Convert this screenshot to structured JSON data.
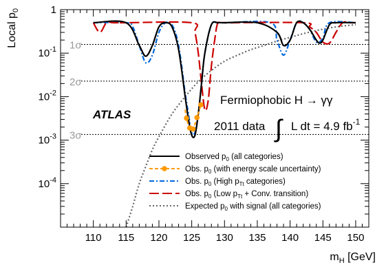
{
  "chart_data": {
    "type": "line",
    "xlabel_main": "m",
    "xlabel_sub": "H",
    "xlabel_unit": " [GeV]",
    "ylabel_main": "Local p",
    "ylabel_sub": "0",
    "xlim": [
      105,
      152
    ],
    "ylim": [
      1e-05,
      1
    ],
    "y_scale": "log",
    "x_ticks": [
      "110",
      "115",
      "120",
      "125",
      "130",
      "135",
      "140",
      "145",
      "150"
    ],
    "x_tick_values": [
      110,
      115,
      120,
      125,
      130,
      135,
      140,
      145,
      150
    ],
    "y_ticks": [
      {
        "base": "1",
        "exp": "",
        "value": 1
      },
      {
        "base": "10",
        "exp": "-1",
        "value": 0.1
      },
      {
        "base": "10",
        "exp": "-2",
        "value": 0.01
      },
      {
        "base": "10",
        "exp": "-3",
        "value": 0.001
      },
      {
        "base": "10",
        "exp": "-4",
        "value": 0.0001
      }
    ],
    "sigma_lines": [
      {
        "label": "1σ",
        "value": 0.1587
      },
      {
        "label": "2σ",
        "value": 0.02275
      },
      {
        "label": "3σ",
        "value": 0.00135
      }
    ],
    "experiment_label": "ATLAS",
    "annotation_title": "Fermiophobic H → γγ",
    "annotation_data": "2011 data",
    "annotation_lumi": "L dt = 4.9 fb",
    "annotation_lumi_exp": "-1",
    "series": [
      {
        "name": "Observed p0 (all categories)",
        "color": "#000000",
        "style": "solid",
        "x": [
          110,
          115,
          117,
          118,
          119,
          120,
          121,
          122,
          123,
          124,
          124.5,
          125,
          125.5,
          126,
          126.5,
          127,
          128,
          129,
          130,
          135,
          138,
          139,
          140,
          141,
          142,
          143,
          144,
          144.5,
          145,
          146,
          147,
          150
        ],
        "y": [
          0.5,
          0.5,
          0.15,
          0.085,
          0.15,
          0.4,
          0.5,
          0.4,
          0.12,
          0.01,
          0.003,
          0.0013,
          0.0013,
          0.004,
          0.02,
          0.1,
          0.45,
          0.5,
          0.5,
          0.5,
          0.3,
          0.15,
          0.2,
          0.5,
          0.5,
          0.35,
          0.2,
          0.17,
          0.2,
          0.45,
          0.5,
          0.5
        ]
      },
      {
        "name": "Obs. p0 (with energy scale uncertainty)",
        "color": "#ff9900",
        "style": "dashed-markers",
        "marker_x": [
          124.2,
          124.7,
          125.2,
          125.8,
          126.4
        ],
        "marker_y": [
          0.0032,
          0.0019,
          0.0018,
          0.0033,
          0.0065
        ],
        "x": [
          124,
          124.2,
          124.7,
          125.2,
          125.8,
          126.4
        ],
        "y": [
          0.005,
          0.0032,
          0.0019,
          0.0018,
          0.0033,
          0.0065
        ]
      },
      {
        "name": "Obs. p0 (High pTt categories)",
        "color": "#0066dd",
        "style": "dashdot",
        "x": [
          110,
          115,
          116,
          117,
          118,
          119,
          120,
          121,
          122,
          123,
          124,
          124.5,
          125,
          125.5,
          126,
          126.5,
          127,
          128,
          129,
          130,
          137,
          138,
          139,
          140,
          141,
          142,
          143,
          144,
          145,
          146,
          150
        ],
        "y": [
          0.5,
          0.5,
          0.4,
          0.15,
          0.06,
          0.09,
          0.3,
          0.5,
          0.45,
          0.15,
          0.012,
          0.004,
          0.0015,
          0.0015,
          0.004,
          0.02,
          0.1,
          0.45,
          0.5,
          0.5,
          0.5,
          0.2,
          0.09,
          0.2,
          0.5,
          0.5,
          0.35,
          0.18,
          0.22,
          0.5,
          0.5
        ]
      },
      {
        "name": "Obs. p0 (Low pTt + Conv. transition)",
        "color": "#cc0000",
        "style": "longdash",
        "x": [
          110,
          111,
          112,
          113,
          114,
          114.5,
          115,
          125,
          125.5,
          126,
          126.5,
          127,
          127.5,
          128,
          128.5,
          129,
          130,
          142,
          143,
          144,
          145,
          146,
          147,
          148,
          149,
          150
        ],
        "y": [
          0.5,
          0.3,
          0.5,
          0.5,
          0.5,
          0.5,
          0.5,
          0.5,
          0.3,
          0.1,
          0.02,
          0.005,
          0.008,
          0.05,
          0.2,
          0.5,
          0.5,
          0.5,
          0.4,
          0.3,
          0.18,
          0.17,
          0.3,
          0.5,
          0.5,
          0.5
        ]
      },
      {
        "name": "Expected p0 with signal (all categories)",
        "color": "#666666",
        "style": "dotted",
        "x": [
          115,
          116,
          117,
          118,
          119,
          120,
          122,
          124,
          126,
          128,
          130,
          132,
          134,
          136,
          138,
          140,
          142,
          144,
          146,
          148,
          150
        ],
        "y": [
          1e-05,
          3e-05,
          0.0001,
          0.00025,
          0.0006,
          0.0012,
          0.004,
          0.01,
          0.022,
          0.04,
          0.065,
          0.09,
          0.12,
          0.15,
          0.19,
          0.23,
          0.28,
          0.33,
          0.38,
          0.42,
          0.45
        ]
      }
    ],
    "legend": [
      {
        "main": "Observed p",
        "sub": "0",
        "rest": " (all categories)",
        "sub2": "",
        "rest2": ""
      },
      {
        "main": "Obs. p",
        "sub": "0",
        "rest": " (with energy scale uncertainty)",
        "sub2": "",
        "rest2": ""
      },
      {
        "main": "Obs. p",
        "sub": "0",
        "rest": " (High p",
        "sub2": "Tt",
        "rest2": " categories)"
      },
      {
        "main": "Obs. p",
        "sub": "0",
        "rest": " (Low p",
        "sub2": "Tt",
        "rest2": " + Conv. transition)"
      },
      {
        "main": "Expected p",
        "sub": "0",
        "rest": " with signal (all categories)",
        "sub2": "",
        "rest2": ""
      }
    ],
    "legend_placement": "bottom-right",
    "grid": false
  }
}
